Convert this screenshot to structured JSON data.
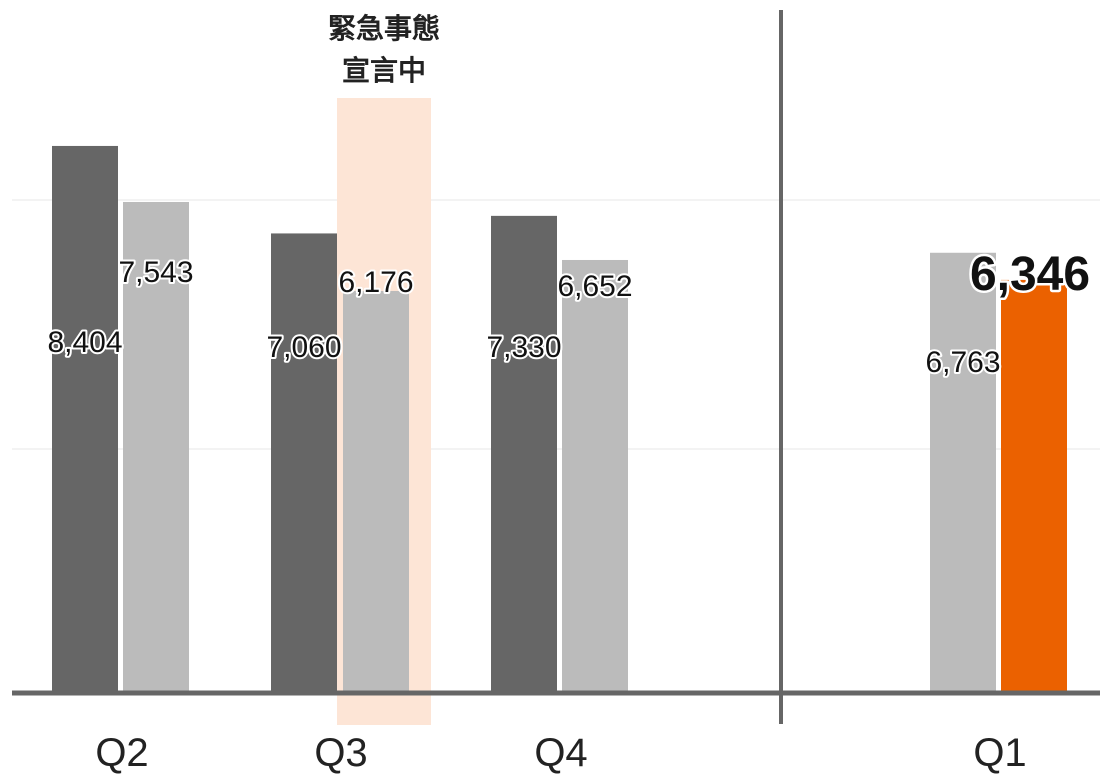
{
  "chart_data": {
    "type": "bar",
    "categories": [
      "Q2",
      "Q3",
      "Q4",
      "Q1"
    ],
    "series": [
      {
        "values": [
          8404,
          7060,
          7330,
          null
        ],
        "color": "#666666"
      },
      {
        "values": [
          7543,
          6176,
          6652,
          6763
        ],
        "color": "#bbbbbb"
      },
      {
        "values": [
          null,
          null,
          null,
          6346
        ],
        "color": "#eb6100"
      }
    ],
    "value_labels": [
      [
        "8,404",
        "7,060",
        "7,330",
        ""
      ],
      [
        "7,543",
        "6,176",
        "6,652",
        "6,763"
      ],
      [
        "",
        "",
        "",
        "6,346"
      ]
    ],
    "highlight_label": "6,346",
    "annotation": {
      "category": "Q3",
      "lines": [
        "緊急事態",
        "宣言中"
      ],
      "band_color": "#fde5d6"
    },
    "grid": true,
    "axis_color": "#666666",
    "ylim": [
      0,
      10600
    ]
  }
}
